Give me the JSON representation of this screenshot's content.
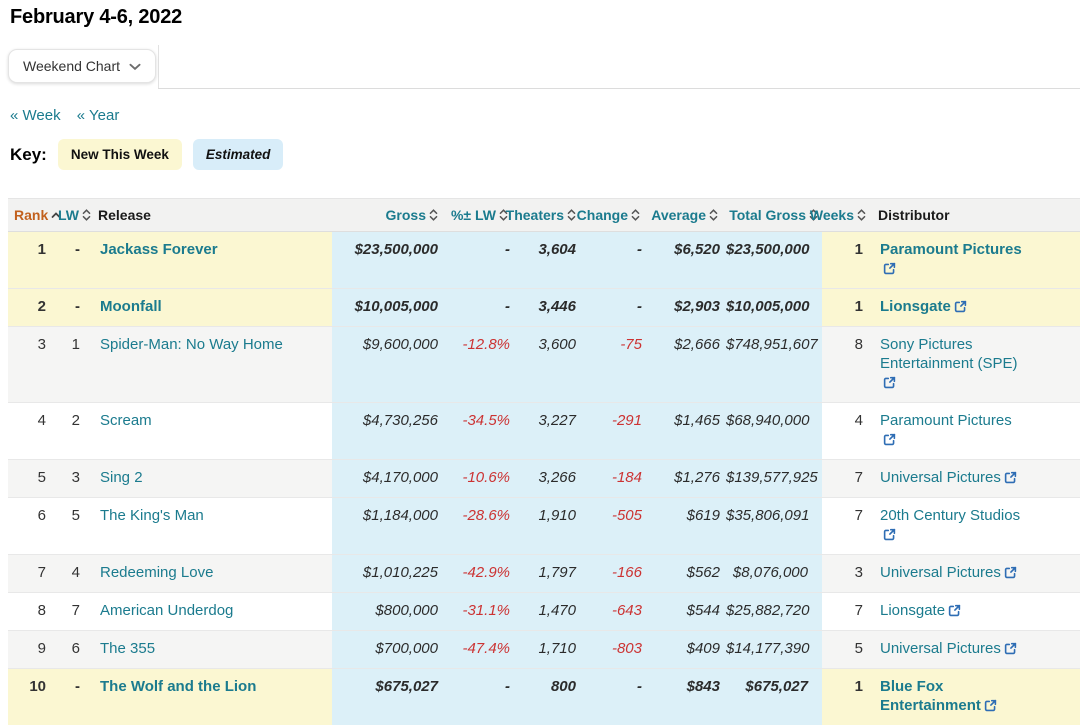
{
  "page": {
    "title": "February 4-6, 2022"
  },
  "toolbar": {
    "chart_selector_label": "Weekend Chart"
  },
  "nav": {
    "week_link": "« Week",
    "year_link": "« Year"
  },
  "key": {
    "label": "Key:",
    "new_badge": "New This Week",
    "estimated_badge": "Estimated"
  },
  "colors": {
    "new_this_week_highlight": "#fbf7d2",
    "estimated_highlight": "#dcf0f8",
    "link_teal": "#1b7b8e",
    "sorted_header_orange": "#c2601d",
    "negative_red": "#cc3333",
    "external_link_blue": "#2e6db4"
  },
  "table": {
    "columns": [
      {
        "label": "Rank",
        "sortable": true,
        "sorted": "ascending"
      },
      {
        "label": "LW",
        "sortable": true
      },
      {
        "label": "Release",
        "sortable": false
      },
      {
        "label": "Gross",
        "sortable": true
      },
      {
        "label": "%± LW",
        "sortable": true
      },
      {
        "label": "Theaters",
        "sortable": true
      },
      {
        "label": "Change",
        "sortable": true
      },
      {
        "label": "Average",
        "sortable": true
      },
      {
        "label": "Total Gross",
        "sortable": true
      },
      {
        "label": "Weeks",
        "sortable": true
      },
      {
        "label": "Distributor",
        "sortable": false
      }
    ],
    "rows": [
      {
        "rank": "1",
        "lw": "-",
        "release": "Jackass Forever",
        "gross": "$23,500,000",
        "pct_lw": "-",
        "theaters": "3,604",
        "change": "-",
        "average": "$6,520",
        "total_gross": "$23,500,000",
        "weeks": "1",
        "distributor": "Paramount Pictures",
        "dist_lines": [
          "Paramount Pictures"
        ],
        "new_this_week": true
      },
      {
        "rank": "2",
        "lw": "-",
        "release": "Moonfall",
        "gross": "$10,005,000",
        "pct_lw": "-",
        "theaters": "3,446",
        "change": "-",
        "average": "$2,903",
        "total_gross": "$10,005,000",
        "weeks": "1",
        "distributor": "Lionsgate",
        "dist_lines": [
          "Lionsgate"
        ],
        "new_this_week": true
      },
      {
        "rank": "3",
        "lw": "1",
        "release": "Spider-Man: No Way Home",
        "gross": "$9,600,000",
        "pct_lw": "-12.8%",
        "theaters": "3,600",
        "change": "-75",
        "average": "$2,666",
        "total_gross": "$748,951,607",
        "weeks": "8",
        "distributor": "Sony Pictures Entertainment (SPE)",
        "dist_lines": [
          "Sony Pictures",
          "Entertainment (SPE)"
        ],
        "new_this_week": false
      },
      {
        "rank": "4",
        "lw": "2",
        "release": "Scream",
        "gross": "$4,730,256",
        "pct_lw": "-34.5%",
        "theaters": "3,227",
        "change": "-291",
        "average": "$1,465",
        "total_gross": "$68,940,000",
        "weeks": "4",
        "distributor": "Paramount Pictures",
        "dist_lines": [
          "Paramount Pictures"
        ],
        "new_this_week": false
      },
      {
        "rank": "5",
        "lw": "3",
        "release": "Sing 2",
        "gross": "$4,170,000",
        "pct_lw": "-10.6%",
        "theaters": "3,266",
        "change": "-184",
        "average": "$1,276",
        "total_gross": "$139,577,925",
        "weeks": "7",
        "distributor": "Universal Pictures",
        "dist_lines": [
          "Universal Pictures"
        ],
        "new_this_week": false
      },
      {
        "rank": "6",
        "lw": "5",
        "release": "The King's Man",
        "gross": "$1,184,000",
        "pct_lw": "-28.6%",
        "theaters": "1,910",
        "change": "-505",
        "average": "$619",
        "total_gross": "$35,806,091",
        "weeks": "7",
        "distributor": "20th Century Studios",
        "dist_lines": [
          "20th Century Studios",
          ""
        ],
        "new_this_week": false
      },
      {
        "rank": "7",
        "lw": "4",
        "release": "Redeeming Love",
        "gross": "$1,010,225",
        "pct_lw": "-42.9%",
        "theaters": "1,797",
        "change": "-166",
        "average": "$562",
        "total_gross": "$8,076,000",
        "weeks": "3",
        "distributor": "Universal Pictures",
        "dist_lines": [
          "Universal Pictures"
        ],
        "new_this_week": false
      },
      {
        "rank": "8",
        "lw": "7",
        "release": "American Underdog",
        "gross": "$800,000",
        "pct_lw": "-31.1%",
        "theaters": "1,470",
        "change": "-643",
        "average": "$544",
        "total_gross": "$25,882,720",
        "weeks": "7",
        "distributor": "Lionsgate",
        "dist_lines": [
          "Lionsgate"
        ],
        "new_this_week": false
      },
      {
        "rank": "9",
        "lw": "6",
        "release": "The 355",
        "gross": "$700,000",
        "pct_lw": "-47.4%",
        "theaters": "1,710",
        "change": "-803",
        "average": "$409",
        "total_gross": "$14,177,390",
        "weeks": "5",
        "distributor": "Universal Pictures",
        "dist_lines": [
          "Universal Pictures"
        ],
        "new_this_week": false
      },
      {
        "rank": "10",
        "lw": "-",
        "release": "The Wolf and the Lion",
        "gross": "$675,027",
        "pct_lw": "-",
        "theaters": "800",
        "change": "-",
        "average": "$843",
        "total_gross": "$675,027",
        "weeks": "1",
        "distributor": "Blue Fox Entertainment",
        "dist_lines": [
          "Blue Fox",
          "Entertainment"
        ],
        "new_this_week": true
      }
    ]
  }
}
